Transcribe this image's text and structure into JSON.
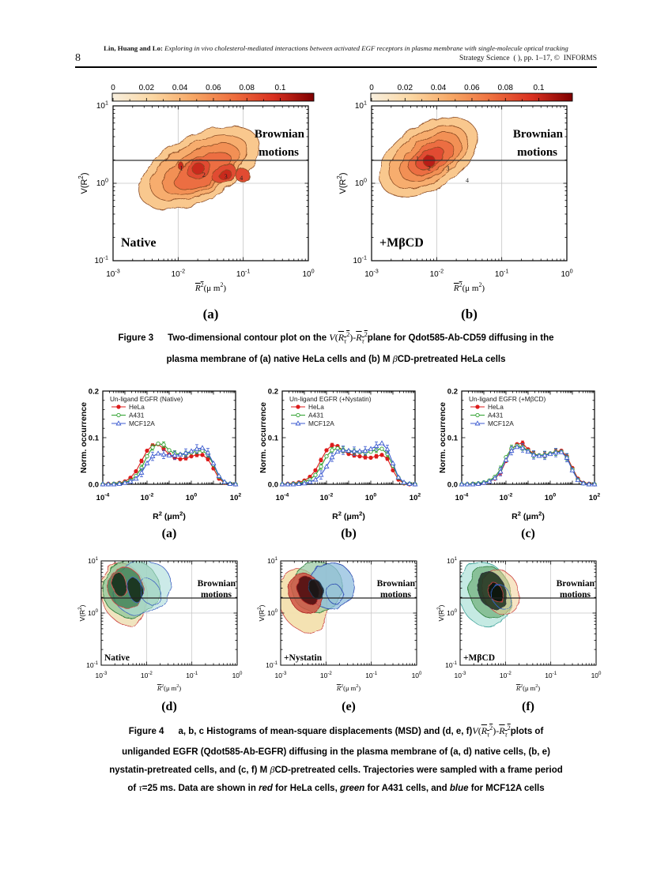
{
  "page": {
    "number": "8",
    "header_line1_html": "<b>Lin, Huang and Lo:</b> <i>Exploring in vivo cholesterol-mediated interactions between activated EGF receptors in plasma membrane with single-molecule optical tracking</i>",
    "header_line2_html": "Strategy Science&nbsp;&nbsp;( ), pp. 1–17, ©&nbsp;&nbsp;INFORMS"
  },
  "captions": {
    "fig3": [
      "<span class='figlbl'>Figure 3</span>Two-dimensional contour plot on the <span class='m'><i>V</i>(<span class='ol'><i>R<sub>τ</sub></i><sup>2</sup></span>)-<span class='ol'><i>R<sub>τ</sub></i><sup>2</sup></span></span>plane for Qdot585-Ab-CD59 diffusing in the",
      "plasma membrane of (a) native HeLa cells and (b) M <span class='m'><i>β</i></span>CD-pretreated HeLa cells"
    ],
    "fig4": [
      "<span class='figlbl'>Figure 4</span>a, b, c Histograms of mean-square displacements (MSD) and (d, e, f)<span class='m'><i>V</i>(<span class='ol'><i>R<sub>τ</sub></i><sup>2</sup></span>)-<span class='ol'><i>R<sub>τ</sub></i><sup>2</sup></span></span>plots of",
      "unliganded EGFR (Qdot585-Ab-EGFR) diffusing in the plasma membrane of (a, d) native cells, (b, e)",
      "nystatin-pretreated cells, and (c, f) M <span class='m'><i>β</i></span>CD-pretreated cells. Trajectories were sampled with a frame period",
      "of <span class='m'><i>τ</i></span>=25 ms. Data are shown in <i>red</i> for HeLa cells, <i>green</i> for A431 cells, and <i>blue</i> for MCF12A cells"
    ]
  },
  "chart_data": {
    "fig3": {
      "type": "heatmap",
      "xlim_log": [
        -3,
        0
      ],
      "ylim_log": [
        -1,
        1
      ],
      "threshold_value": 2,
      "colorbar": {
        "ticks": [
          "0",
          "0.02",
          "0.04",
          "0.06",
          "0.08",
          "0.1"
        ],
        "colors": [
          "#f7efdf",
          "#fbd7a2",
          "#f6a765",
          "#ee6f3e",
          "#d93020",
          "#7f0000"
        ]
      },
      "panels": [
        {
          "letter": "(a)",
          "condition": "Native",
          "annotation": [
            "Brownian",
            "motions"
          ],
          "peaks": [
            {
              "t": "1",
              "x": 0.35,
              "y": 0.4
            },
            {
              "t": "2",
              "x": 0.465,
              "y": 0.445
            },
            {
              "t": "3",
              "x": 0.578,
              "y": 0.455
            },
            {
              "t": "4",
              "x": 0.657,
              "y": 0.465
            }
          ],
          "blobs": [
            {
              "x": 0.44,
              "y": 0.4,
              "rx": 0.335,
              "ry": 0.21,
              "r": -27,
              "f": "#f9c88e",
              "s": "#8a4a22"
            },
            {
              "x": 0.44,
              "y": 0.4,
              "rx": 0.27,
              "ry": 0.165,
              "r": -27,
              "f": "#f7ad6e",
              "s": "#8a4a22"
            },
            {
              "x": 0.45,
              "y": 0.41,
              "rx": 0.215,
              "ry": 0.125,
              "r": -27,
              "f": "#f29054",
              "s": "#8a4a22"
            },
            {
              "x": 0.46,
              "y": 0.42,
              "rx": 0.16,
              "ry": 0.09,
              "r": -27,
              "f": "#ec6e42",
              "s": "#8a4a22"
            },
            {
              "x": 0.44,
              "y": 0.41,
              "rx": 0.062,
              "ry": 0.055,
              "r": -27,
              "f": "#e14b30",
              "s": "#8a4a22"
            },
            {
              "x": 0.57,
              "y": 0.44,
              "rx": 0.065,
              "ry": 0.055,
              "r": -27,
              "f": "#e14b30",
              "s": "#8a4a22"
            },
            {
              "x": 0.44,
              "y": 0.41,
              "rx": 0.032,
              "ry": 0.03,
              "r": -27,
              "f": "#c92a1e",
              "s": "#8a4a22"
            },
            {
              "x": 0.575,
              "y": 0.445,
              "rx": 0.032,
              "ry": 0.03,
              "r": -27,
              "f": "#c92a1e",
              "s": "#8a4a22"
            },
            {
              "x": 0.665,
              "y": 0.45,
              "rx": 0.035,
              "ry": 0.045,
              "r": -30,
              "f": "#e14b30",
              "s": "#8a4a22"
            },
            {
              "x": 0.345,
              "y": 0.385,
              "rx": 0.016,
              "ry": 0.025,
              "r": -20,
              "f": "#c92a1e",
              "s": "#8a4a22"
            }
          ]
        },
        {
          "letter": "(b)",
          "condition": "+MβCD",
          "annotation": [
            "Brownian",
            "motions"
          ],
          "peaks": [
            {
              "t": "1",
              "x": 0.235,
              "y": 0.34
            },
            {
              "t": "2",
              "x": 0.295,
              "y": 0.4
            },
            {
              "t": "3",
              "x": 0.39,
              "y": 0.4
            },
            {
              "t": "4",
              "x": 0.49,
              "y": 0.48
            }
          ],
          "blobs": [
            {
              "x": 0.29,
              "y": 0.33,
              "rx": 0.28,
              "ry": 0.205,
              "r": -33,
              "f": "#f9c88e",
              "s": "#8a4a22"
            },
            {
              "x": 0.29,
              "y": 0.33,
              "rx": 0.225,
              "ry": 0.16,
              "r": -33,
              "f": "#f7ad6e",
              "s": "#8a4a22"
            },
            {
              "x": 0.3,
              "y": 0.33,
              "rx": 0.175,
              "ry": 0.12,
              "r": -33,
              "f": "#f29054",
              "s": "#8a4a22"
            },
            {
              "x": 0.305,
              "y": 0.335,
              "rx": 0.125,
              "ry": 0.085,
              "r": -33,
              "f": "#ec6e42",
              "s": "#8a4a22"
            },
            {
              "x": 0.3,
              "y": 0.34,
              "rx": 0.08,
              "ry": 0.055,
              "r": -33,
              "f": "#e14b30",
              "s": "#8a4a22"
            },
            {
              "x": 0.295,
              "y": 0.355,
              "rx": 0.03,
              "ry": 0.04,
              "r": -33,
              "f": "#b81a12",
              "s": "#8a4a22"
            }
          ]
        }
      ]
    },
    "fig4_hist": {
      "type": "line",
      "ylabel": "Norm. occurrence",
      "yticks": [
        "0.0",
        "0.1",
        "0.2"
      ],
      "ylim": [
        0,
        0.2
      ],
      "xlim_log": [
        -4,
        2
      ],
      "x_tick_exps": [
        -4,
        -2,
        0,
        2
      ],
      "x_log_start": -4,
      "x_log_step": 0.25,
      "panels": [
        {
          "letter": "(a)",
          "title": "Un-ligand EGFR (Native)",
          "series": [
            {
              "name": "HeLa",
              "color": "#dd1c1c",
              "marker": "circle-filled",
              "err": 0.004,
              "values": [
                0,
                0.001,
                0.001,
                0.003,
                0.006,
                0.014,
                0.028,
                0.05,
                0.072,
                0.083,
                0.086,
                0.076,
                0.064,
                0.057,
                0.054,
                0.056,
                0.06,
                0.063,
                0.063,
                0.054,
                0.034,
                0.012,
                0.003,
                0.001,
                0
              ]
            },
            {
              "name": "A431",
              "color": "#2ca02c",
              "marker": "circle-open",
              "err": 0.006,
              "values": [
                0,
                0,
                0.001,
                0.002,
                0.004,
                0.008,
                0.018,
                0.035,
                0.06,
                0.079,
                0.087,
                0.085,
                0.073,
                0.066,
                0.064,
                0.065,
                0.068,
                0.071,
                0.072,
                0.064,
                0.042,
                0.016,
                0.004,
                0.001,
                0
              ]
            },
            {
              "name": "MCF12A",
              "color": "#3c5bd0",
              "marker": "triangle-open",
              "err": 0.009,
              "values": [
                0,
                0,
                0,
                0.001,
                0.003,
                0.006,
                0.012,
                0.025,
                0.045,
                0.06,
                0.066,
                0.064,
                0.062,
                0.062,
                0.064,
                0.067,
                0.071,
                0.076,
                0.078,
                0.068,
                0.045,
                0.018,
                0.005,
                0.001,
                0
              ]
            }
          ]
        },
        {
          "letter": "(b)",
          "title": "Un-ligand EGFR (+Nystatin)",
          "series": [
            {
              "name": "HeLa",
              "color": "#dd1c1c",
              "marker": "circle-filled",
              "err": 0.004,
              "values": [
                0,
                0.001,
                0.002,
                0.004,
                0.008,
                0.016,
                0.03,
                0.052,
                0.073,
                0.084,
                0.082,
                0.072,
                0.065,
                0.062,
                0.06,
                0.058,
                0.057,
                0.06,
                0.063,
                0.055,
                0.03,
                0.01,
                0.002,
                0,
                0
              ]
            },
            {
              "name": "A431",
              "color": "#2ca02c",
              "marker": "circle-open",
              "err": 0.006,
              "values": [
                0,
                0,
                0.001,
                0.002,
                0.005,
                0.01,
                0.02,
                0.038,
                0.06,
                0.073,
                0.077,
                0.074,
                0.071,
                0.07,
                0.069,
                0.068,
                0.07,
                0.074,
                0.076,
                0.065,
                0.04,
                0.014,
                0.003,
                0.001,
                0
              ]
            },
            {
              "name": "MCF12A",
              "color": "#3c5bd0",
              "marker": "triangle-open",
              "err": 0.009,
              "values": [
                0,
                0,
                0,
                0.001,
                0.002,
                0.005,
                0.01,
                0.02,
                0.038,
                0.058,
                0.07,
                0.073,
                0.072,
                0.071,
                0.071,
                0.072,
                0.076,
                0.082,
                0.088,
                0.075,
                0.045,
                0.015,
                0.004,
                0.001,
                0
              ]
            }
          ]
        },
        {
          "letter": "(c)",
          "title": "Un-ligand EGFR (+MβCD)",
          "series": [
            {
              "name": "HeLa",
              "color": "#dd1c1c",
              "marker": "circle-filled",
              "err": 0.005,
              "values": [
                0,
                0,
                0.001,
                0.001,
                0.003,
                0.006,
                0.012,
                0.025,
                0.05,
                0.075,
                0.086,
                0.088,
                0.075,
                0.065,
                0.062,
                0.063,
                0.066,
                0.07,
                0.072,
                0.06,
                0.035,
                0.012,
                0.003,
                0.001,
                0
              ]
            },
            {
              "name": "A431",
              "color": "#2ca02c",
              "marker": "circle-open",
              "err": 0.007,
              "values": [
                0,
                0,
                0.001,
                0.002,
                0.004,
                0.008,
                0.016,
                0.032,
                0.058,
                0.077,
                0.083,
                0.08,
                0.072,
                0.064,
                0.062,
                0.063,
                0.066,
                0.069,
                0.07,
                0.058,
                0.032,
                0.01,
                0.002,
                0,
                0
              ]
            },
            {
              "name": "MCF12A",
              "color": "#3c5bd0",
              "marker": "triangle-open",
              "err": 0.009,
              "values": [
                0,
                0,
                0,
                0.001,
                0.003,
                0.006,
                0.013,
                0.027,
                0.052,
                0.072,
                0.08,
                0.078,
                0.07,
                0.063,
                0.061,
                0.062,
                0.065,
                0.068,
                0.069,
                0.057,
                0.03,
                0.009,
                0.002,
                0,
                0
              ]
            }
          ]
        }
      ]
    },
    "fig4_contour": {
      "type": "heatmap",
      "xlim_log": [
        -3,
        0
      ],
      "ylim_log": [
        -1,
        1
      ],
      "threshold_value": 2,
      "panels": [
        {
          "letter": "(d)",
          "condition": "Native",
          "annotation": [
            "Brownian",
            "motions"
          ],
          "blobs": [
            {
              "x": 0.17,
              "y": 0.32,
              "rx": 0.17,
              "ry": 0.3,
              "r": -18,
              "f": "#efe3bc",
              "o": 0.95,
              "s": "#c44"
            },
            {
              "x": 0.22,
              "y": 0.27,
              "rx": 0.21,
              "ry": 0.27,
              "r": -24,
              "f": "#8fc79a",
              "o": 0.75,
              "s": "#2a7d3a"
            },
            {
              "x": 0.3,
              "y": 0.26,
              "rx": 0.22,
              "ry": 0.25,
              "r": -28,
              "f": "#aadcd8",
              "o": 0.6,
              "s": "#3a5fc0"
            },
            {
              "x": 0.18,
              "y": 0.26,
              "rx": 0.13,
              "ry": 0.2,
              "r": -20,
              "f": "#3f7d4f",
              "o": 0.8,
              "s": "#c44"
            },
            {
              "x": 0.13,
              "y": 0.22,
              "rx": 0.055,
              "ry": 0.12,
              "r": -14,
              "f": "#17301d",
              "o": 0.9,
              "s": "#d55"
            },
            {
              "x": 0.25,
              "y": 0.28,
              "rx": 0.055,
              "ry": 0.12,
              "r": -16,
              "f": "#17301d",
              "o": 0.9,
              "s": "#46c"
            },
            {
              "x": 0.36,
              "y": 0.3,
              "rx": 0.07,
              "ry": 0.13,
              "r": -22,
              "f": "none",
              "o": 1,
              "s": "#3a5fc0"
            }
          ]
        },
        {
          "letter": "(e)",
          "condition": "+Nystatin",
          "annotation": [
            "Brownian",
            "motions"
          ],
          "blobs": [
            {
              "x": 0.16,
              "y": 0.38,
              "rx": 0.17,
              "ry": 0.32,
              "r": -22,
              "f": "#f3e0ae",
              "o": 0.95,
              "s": "#c44"
            },
            {
              "x": 0.27,
              "y": 0.25,
              "rx": 0.19,
              "ry": 0.24,
              "r": -28,
              "f": "#96c9a0",
              "o": 0.7,
              "s": "#2a7d3a"
            },
            {
              "x": 0.37,
              "y": 0.24,
              "rx": 0.17,
              "ry": 0.22,
              "r": -30,
              "f": "#8fbede",
              "o": 0.75,
              "s": "#2a48b0"
            },
            {
              "x": 0.18,
              "y": 0.31,
              "rx": 0.12,
              "ry": 0.2,
              "r": -22,
              "f": "#cf5343",
              "o": 0.85,
              "s": "#a22"
            },
            {
              "x": 0.2,
              "y": 0.28,
              "rx": 0.075,
              "ry": 0.14,
              "r": -22,
              "f": "#501010",
              "o": 0.9,
              "s": "#a22"
            },
            {
              "x": 0.26,
              "y": 0.27,
              "rx": 0.05,
              "ry": 0.1,
              "r": -24,
              "f": "#101418",
              "o": 0.85,
              "s": "#246"
            },
            {
              "x": 0.4,
              "y": 0.32,
              "rx": 0.06,
              "ry": 0.1,
              "r": -24,
              "f": "none",
              "o": 1,
              "s": "#2a48b0"
            }
          ]
        },
        {
          "letter": "(f)",
          "condition": "+MβCD",
          "annotation": [
            "Brownian",
            "motions"
          ],
          "blobs": [
            {
              "x": 0.18,
              "y": 0.32,
              "rx": 0.19,
              "ry": 0.32,
              "r": -18,
              "f": "#c2e9e2",
              "o": 0.95,
              "s": "#3aa098"
            },
            {
              "x": 0.22,
              "y": 0.3,
              "rx": 0.15,
              "ry": 0.26,
              "r": -20,
              "f": "#7db88b",
              "o": 0.85,
              "s": "#2a7d3a"
            },
            {
              "x": 0.3,
              "y": 0.3,
              "rx": 0.13,
              "ry": 0.22,
              "r": -24,
              "f": "#f0cf96",
              "o": 0.55,
              "s": "#c44"
            },
            {
              "x": 0.23,
              "y": 0.28,
              "rx": 0.1,
              "ry": 0.18,
              "r": -20,
              "f": "#223524",
              "o": 0.9,
              "s": "#334"
            },
            {
              "x": 0.26,
              "y": 0.3,
              "rx": 0.05,
              "ry": 0.09,
              "r": -20,
              "f": "#0d140d",
              "o": 0.95,
              "s": "#c44"
            },
            {
              "x": 0.3,
              "y": 0.34,
              "rx": 0.065,
              "ry": 0.12,
              "r": -22,
              "f": "none",
              "o": 1,
              "s": "#36c"
            }
          ]
        }
      ]
    }
  }
}
